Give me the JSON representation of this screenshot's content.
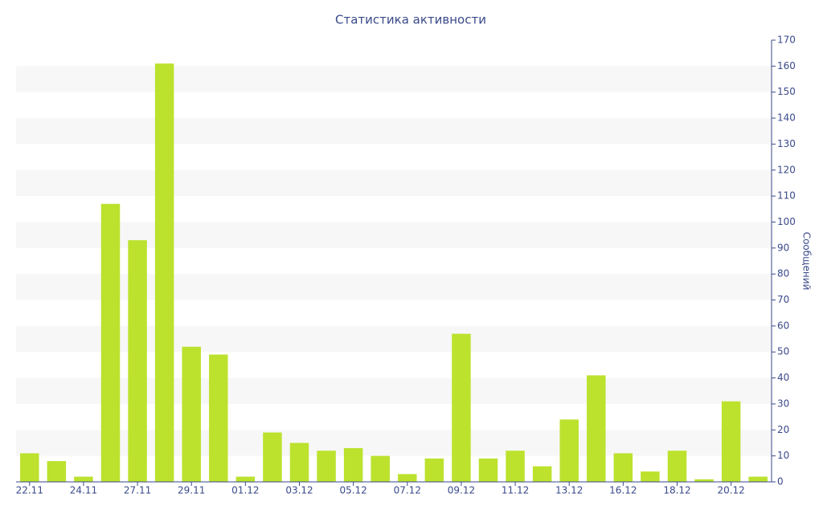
{
  "chart_data": {
    "type": "bar",
    "title": "Статистика активности",
    "y_axis_label": "Сообщений",
    "categories": [
      "22.11",
      null,
      "24.11",
      null,
      "27.11",
      null,
      "29.11",
      null,
      "01.12",
      null,
      "03.12",
      null,
      "05.12",
      null,
      "07.12",
      null,
      "09.12",
      null,
      "11.12",
      null,
      "13.12",
      null,
      "16.12",
      null,
      "18.12",
      null,
      "20.12",
      null
    ],
    "values": [
      11,
      8,
      2,
      107,
      93,
      161,
      52,
      49,
      2,
      19,
      15,
      12,
      13,
      10,
      3,
      9,
      57,
      9,
      12,
      6,
      24,
      41,
      11,
      4,
      12,
      1,
      31,
      2
    ],
    "color": "#bce22e",
    "ylim": [
      0,
      170
    ],
    "yticks": [
      0,
      10,
      20,
      30,
      40,
      50,
      60,
      70,
      80,
      90,
      100,
      110,
      120,
      130,
      140,
      150,
      160,
      170
    ],
    "y_axis_side": "right",
    "grid": "bands"
  }
}
